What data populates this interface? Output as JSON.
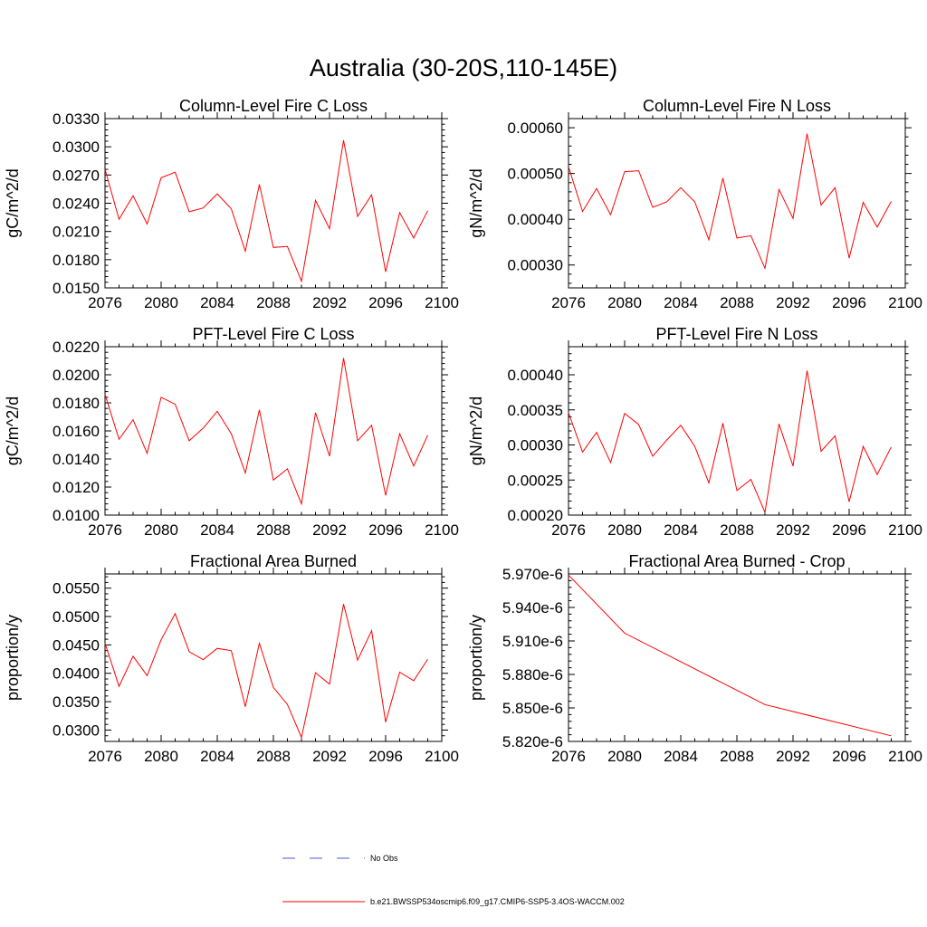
{
  "title": "Australia (30-20S,110-145E)",
  "legend": {
    "obs_label": "No Obs",
    "obs_color": "#4a5bd6",
    "model_label": "b.e21.BWSSP534oscmip6.f09_g17.CMIP6-SSP5-3.4OS-WACCM.002",
    "model_color": "#ff0000"
  },
  "chart_data": [
    {
      "type": "line",
      "title": "Column-Level Fire C Loss",
      "ylabel": "gC/m^2/d",
      "xlim": [
        2076,
        2100
      ],
      "ylim": [
        0.015,
        0.033
      ],
      "xticks": [
        "2076",
        "2080",
        "2084",
        "2088",
        "2092",
        "2096",
        "2100"
      ],
      "yticks": [
        "0.0150",
        "0.0180",
        "0.0210",
        "0.0240",
        "0.0270",
        "0.0300",
        "0.0330"
      ],
      "series": [
        {
          "color": "#ff0000",
          "x": [
            2076,
            2077,
            2078,
            2079,
            2080,
            2081,
            2082,
            2083,
            2084,
            2085,
            2086,
            2087,
            2088,
            2089,
            2090,
            2091,
            2092,
            2093,
            2094,
            2095,
            2096,
            2097,
            2098,
            2099
          ],
          "values": [
            0.0276,
            0.0223,
            0.0248,
            0.0218,
            0.0267,
            0.0273,
            0.0231,
            0.0235,
            0.025,
            0.0234,
            0.0189,
            0.026,
            0.0193,
            0.0194,
            0.0157,
            0.0243,
            0.0213,
            0.0307,
            0.0226,
            0.0249,
            0.0167,
            0.023,
            0.0203,
            0.0232
          ]
        }
      ]
    },
    {
      "type": "line",
      "title": "Column-Level Fire N Loss",
      "ylabel": "gN/m^2/d",
      "xlim": [
        2076,
        2100
      ],
      "ylim": [
        0.00025,
        0.00062
      ],
      "xticks": [
        "2076",
        "2080",
        "2084",
        "2088",
        "2092",
        "2096",
        "2100"
      ],
      "yticks": [
        "0.00030",
        "0.00040",
        "0.00050",
        "0.00060"
      ],
      "series": [
        {
          "color": "#ff0000",
          "x": [
            2076,
            2077,
            2078,
            2079,
            2080,
            2081,
            2082,
            2083,
            2084,
            2085,
            2086,
            2087,
            2088,
            2089,
            2090,
            2091,
            2092,
            2093,
            2094,
            2095,
            2096,
            2097,
            2098,
            2099
          ],
          "values": [
            0.000515,
            0.000417,
            0.000467,
            0.00041,
            0.000504,
            0.000506,
            0.000426,
            0.000438,
            0.000469,
            0.000438,
            0.000355,
            0.00049,
            0.000359,
            0.000364,
            0.000293,
            0.000465,
            0.000402,
            0.000587,
            0.000431,
            0.000469,
            0.000315,
            0.000437,
            0.000383,
            0.000439
          ]
        }
      ]
    },
    {
      "type": "line",
      "title": "PFT-Level Fire C Loss",
      "ylabel": "gC/m^2/d",
      "xlim": [
        2076,
        2100
      ],
      "ylim": [
        0.01,
        0.022
      ],
      "xticks": [
        "2076",
        "2080",
        "2084",
        "2088",
        "2092",
        "2096",
        "2100"
      ],
      "yticks": [
        "0.0100",
        "0.0120",
        "0.0140",
        "0.0160",
        "0.0180",
        "0.0200",
        "0.0220"
      ],
      "series": [
        {
          "color": "#ff0000",
          "x": [
            2076,
            2077,
            2078,
            2079,
            2080,
            2081,
            2082,
            2083,
            2084,
            2085,
            2086,
            2087,
            2088,
            2089,
            2090,
            2091,
            2092,
            2093,
            2094,
            2095,
            2096,
            2097,
            2098,
            2099
          ],
          "values": [
            0.0186,
            0.0154,
            0.0168,
            0.0144,
            0.0184,
            0.0179,
            0.0153,
            0.0162,
            0.0174,
            0.0158,
            0.013,
            0.0175,
            0.0125,
            0.0133,
            0.0108,
            0.0173,
            0.0142,
            0.0212,
            0.0153,
            0.0164,
            0.0114,
            0.0158,
            0.0135,
            0.0157
          ]
        }
      ]
    },
    {
      "type": "line",
      "title": "PFT-Level Fire N Loss",
      "ylabel": "gN/m^2/d",
      "xlim": [
        2076,
        2100
      ],
      "ylim": [
        0.0002,
        0.00044
      ],
      "xticks": [
        "2076",
        "2080",
        "2084",
        "2088",
        "2092",
        "2096",
        "2100"
      ],
      "yticks": [
        "0.00020",
        "0.00025",
        "0.00030",
        "0.00035",
        "0.00040"
      ],
      "series": [
        {
          "color": "#ff0000",
          "x": [
            2076,
            2077,
            2078,
            2079,
            2080,
            2081,
            2082,
            2083,
            2084,
            2085,
            2086,
            2087,
            2088,
            2089,
            2090,
            2091,
            2092,
            2093,
            2094,
            2095,
            2096,
            2097,
            2098,
            2099
          ],
          "values": [
            0.000346,
            0.00029,
            0.000318,
            0.000275,
            0.000345,
            0.000329,
            0.000284,
            0.000307,
            0.000328,
            0.000298,
            0.000246,
            0.000331,
            0.000235,
            0.000251,
            0.000204,
            0.00033,
            0.00027,
            0.000406,
            0.000291,
            0.000313,
            0.000219,
            0.000298,
            0.000258,
            0.000297
          ]
        }
      ]
    },
    {
      "type": "line",
      "title": "Fractional Area Burned",
      "ylabel": "proportion/y",
      "xlim": [
        2076,
        2100
      ],
      "ylim": [
        0.028,
        0.0575
      ],
      "xticks": [
        "2076",
        "2080",
        "2084",
        "2088",
        "2092",
        "2096",
        "2100"
      ],
      "yticks": [
        "0.0300",
        "0.0350",
        "0.0400",
        "0.0450",
        "0.0500",
        "0.0550"
      ],
      "series": [
        {
          "color": "#ff0000",
          "x": [
            2076,
            2077,
            2078,
            2079,
            2080,
            2081,
            2082,
            2083,
            2084,
            2085,
            2086,
            2087,
            2088,
            2089,
            2090,
            2091,
            2092,
            2093,
            2094,
            2095,
            2096,
            2097,
            2098,
            2099
          ],
          "values": [
            0.0453,
            0.0377,
            0.043,
            0.0396,
            0.0459,
            0.0505,
            0.0438,
            0.0424,
            0.0444,
            0.044,
            0.0341,
            0.0453,
            0.0375,
            0.0345,
            0.0287,
            0.0401,
            0.0381,
            0.0522,
            0.0423,
            0.0475,
            0.0314,
            0.0402,
            0.0387,
            0.0425
          ]
        }
      ]
    },
    {
      "type": "line",
      "title": "Fractional Area Burned - Crop",
      "ylabel": "proportion/y",
      "xlim": [
        2076,
        2100
      ],
      "ylim": [
        5.82e-06,
        5.97e-06
      ],
      "xticks": [
        "2076",
        "2080",
        "2084",
        "2088",
        "2092",
        "2096",
        "2100"
      ],
      "yticks": [
        "5.820e-6",
        "5.850e-6",
        "5.880e-6",
        "5.910e-6",
        "5.940e-6",
        "5.970e-6"
      ],
      "series": [
        {
          "color": "#ff0000",
          "x": [
            2076,
            2080,
            2090,
            2099
          ],
          "values": [
            5.969e-06,
            5.917e-06,
            5.853e-06,
            5.825e-06
          ]
        }
      ]
    }
  ]
}
